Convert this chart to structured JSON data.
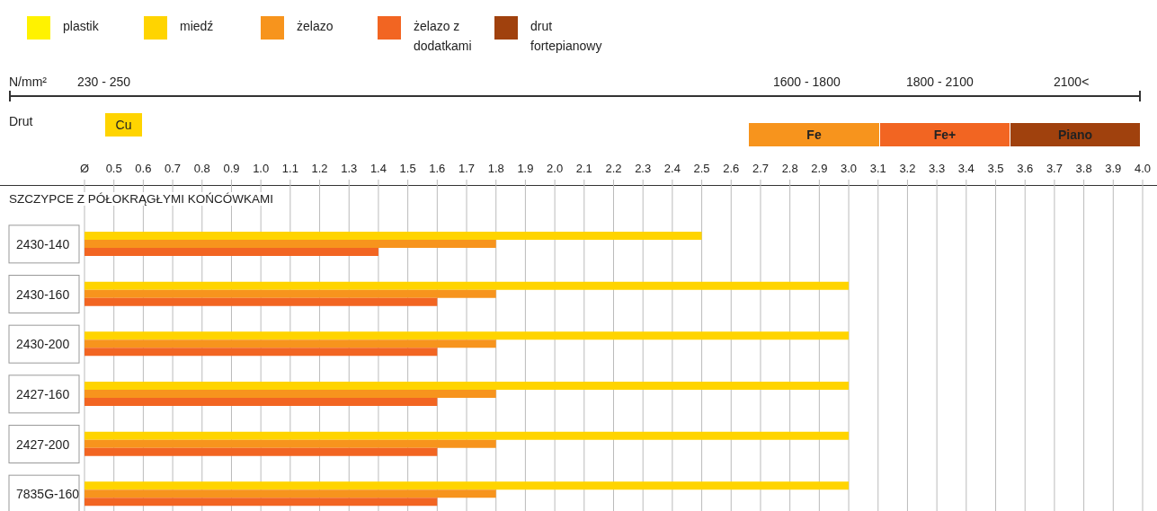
{
  "chart_data": {
    "type": "bar",
    "orientation": "horizontal",
    "title": "SZCZYPCE Z PÓŁOKRĄGŁYMI KOŃCÓWKAMI",
    "annotations": [
      "N/mm²",
      "230 - 250",
      "1600 - 1800",
      "1800 - 2100",
      "2100<",
      "Drut",
      "Cu",
      "Fe",
      "Fe+",
      "Piano"
    ],
    "categories": [
      "2430-140",
      "2430-160",
      "2430-200",
      "2427-160",
      "2427-200",
      "7835G-160"
    ],
    "series": [
      {
        "name": "plastik",
        "color": "#fff200",
        "values": [
          null,
          null,
          null,
          null,
          null,
          null
        ]
      },
      {
        "name": "miedź",
        "color": "#ffd400",
        "values": [
          2.5,
          3.0,
          3.0,
          3.0,
          3.0,
          3.0
        ]
      },
      {
        "name": "żelazo",
        "color": "#f7941d",
        "values": [
          1.8,
          1.8,
          1.8,
          1.8,
          1.8,
          1.8
        ]
      },
      {
        "name": "żelazo z dodatkami",
        "color": "#f26522",
        "values": [
          1.4,
          1.6,
          1.6,
          1.6,
          1.6,
          1.6
        ]
      },
      {
        "name": "drut fortepianowy",
        "color": "#a0410d",
        "values": [
          null,
          null,
          null,
          null,
          null,
          null
        ]
      }
    ],
    "xlim": [
      0.4,
      4.0
    ],
    "xticks": [
      {
        "value": 0.4,
        "label": "Ø"
      },
      0.5,
      0.6,
      0.7,
      0.8,
      0.9,
      {
        "value": 1.0,
        "label": "1.0"
      },
      1.1,
      1.2,
      1.3,
      1.4,
      1.5,
      1.6,
      1.7,
      1.8,
      1.9,
      {
        "value": 2.0,
        "label": "2.0"
      },
      2.1,
      2.2,
      2.3,
      2.4,
      2.5,
      2.6,
      2.7,
      2.8,
      2.9,
      {
        "value": 3.0,
        "label": "3.0"
      },
      3.1,
      3.2,
      3.3,
      3.4,
      3.5,
      3.6,
      3.7,
      3.8,
      3.9,
      {
        "value": 4.0,
        "label": "4.0"
      }
    ],
    "grid": "x",
    "legend": "top left"
  }
}
